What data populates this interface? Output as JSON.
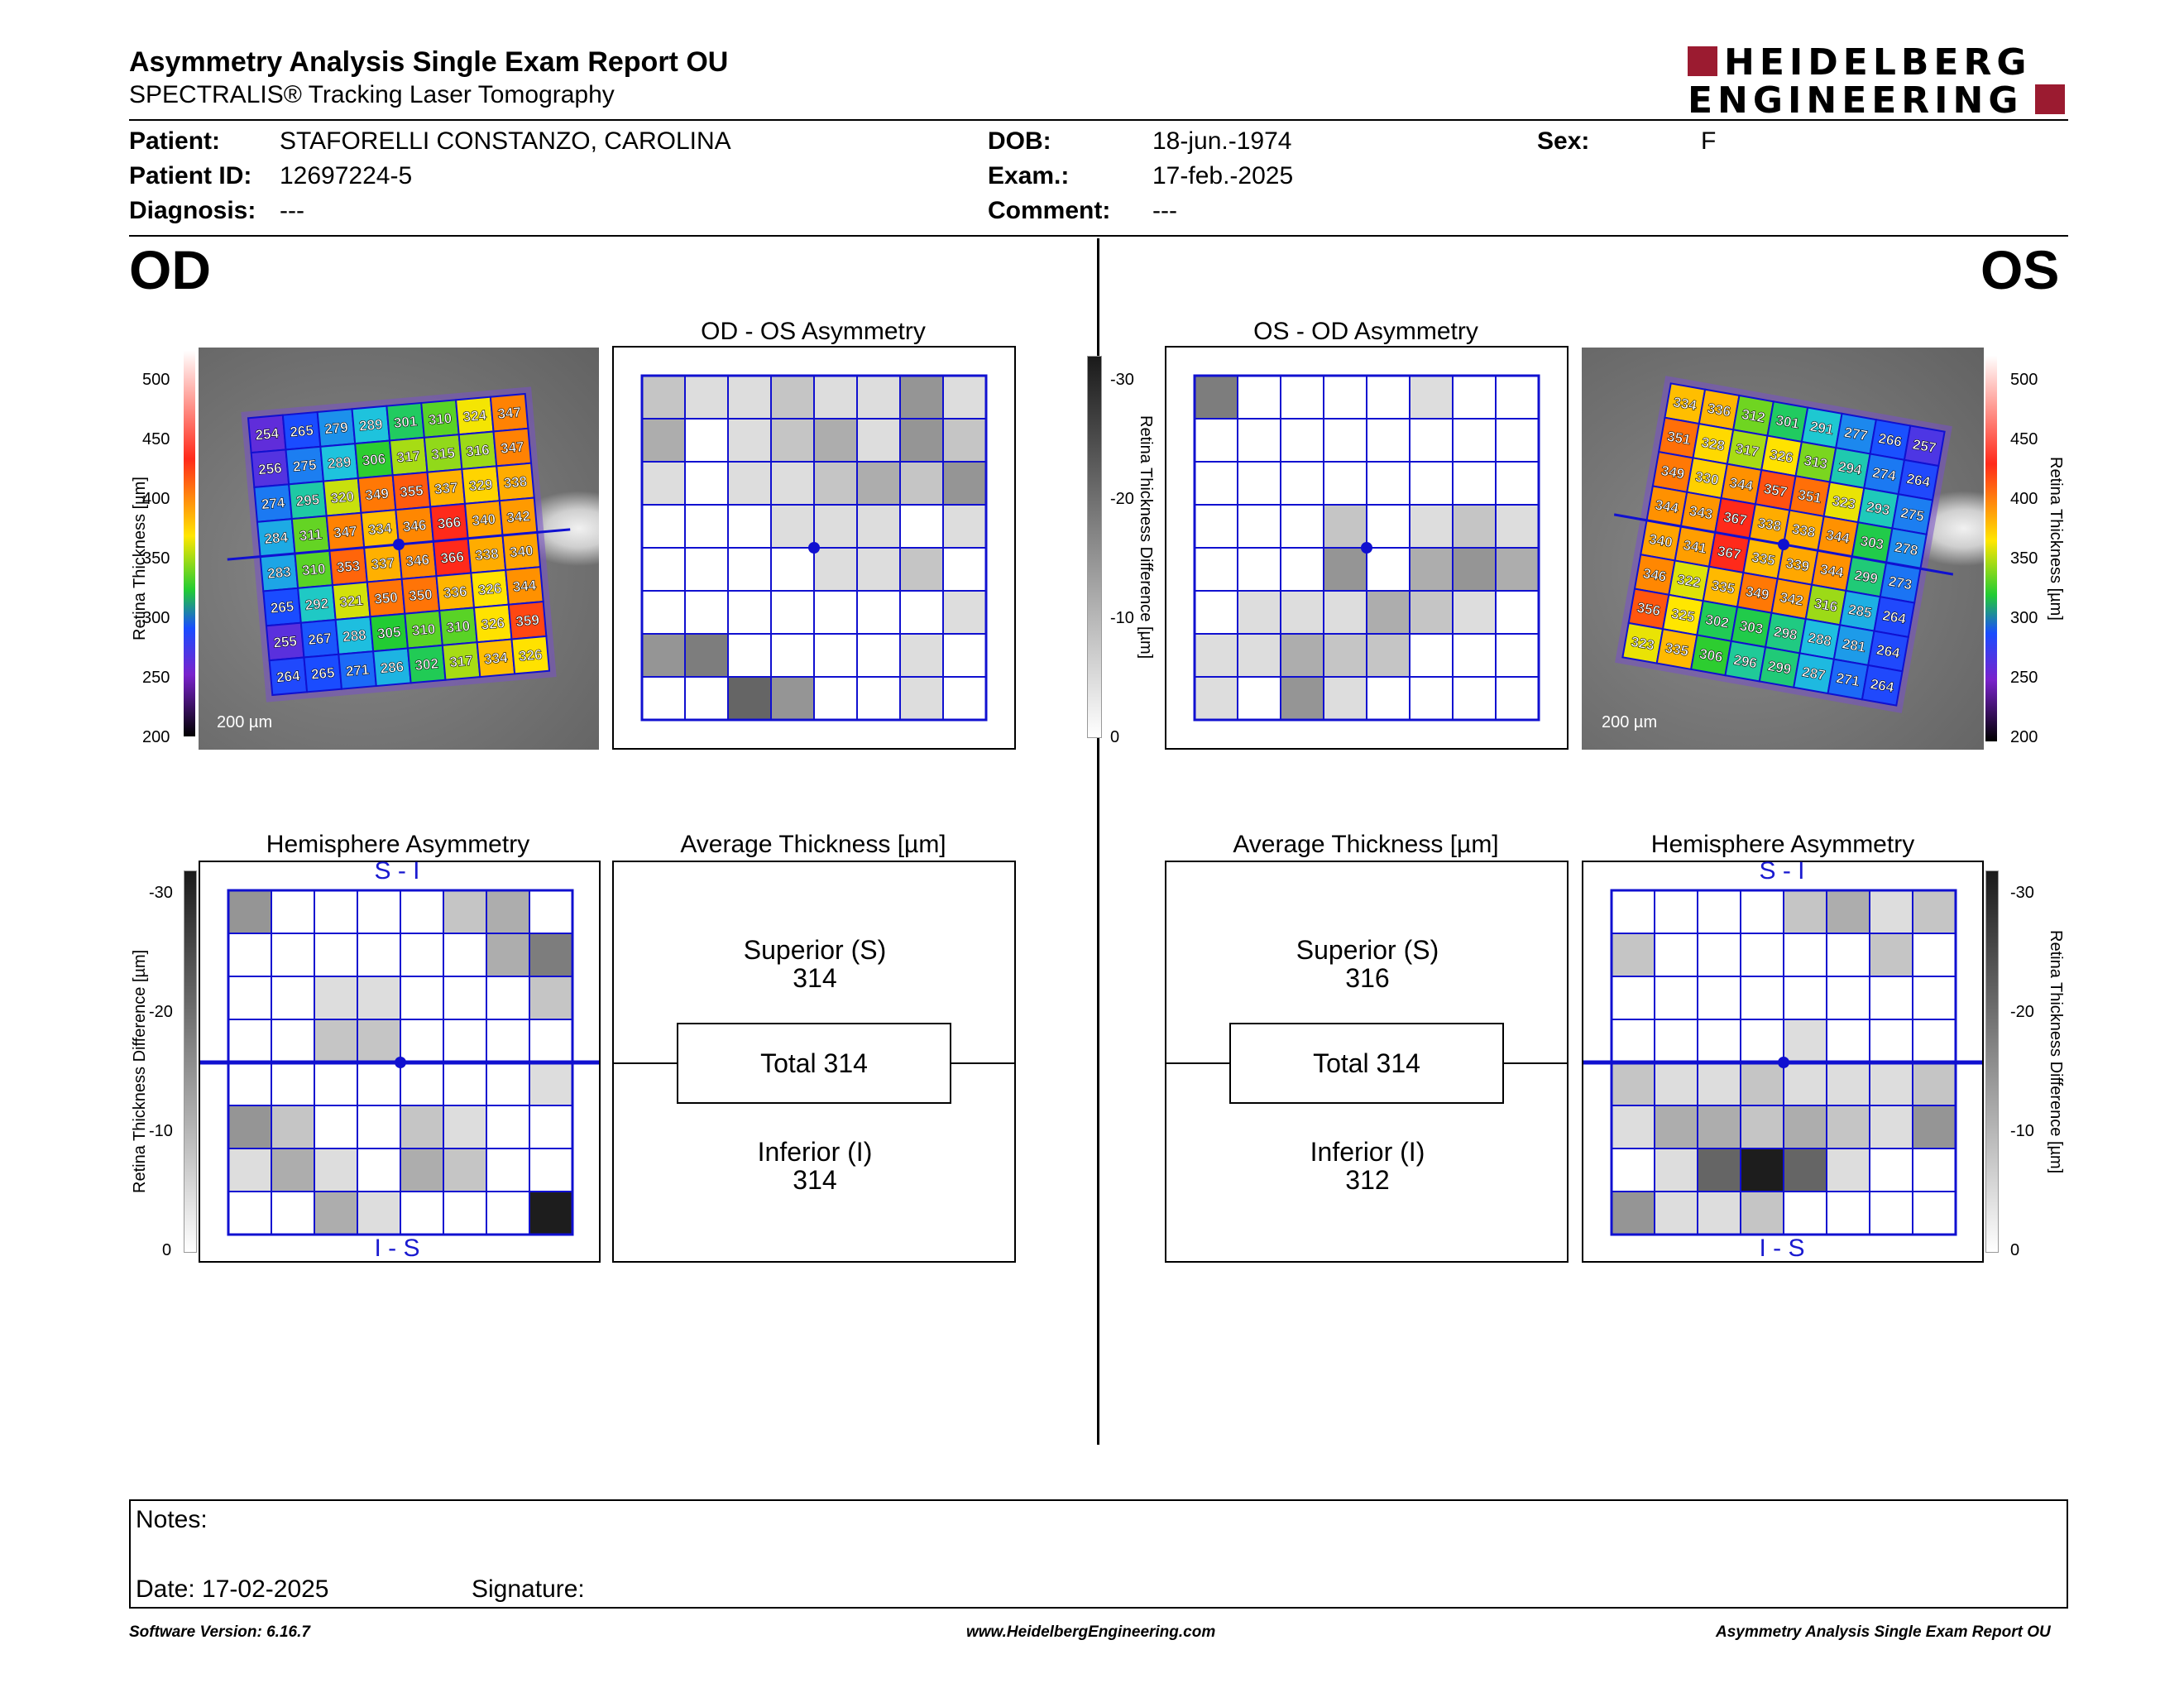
{
  "header": {
    "title": "Asymmetry Analysis Single Exam Report OU",
    "subtitle": "SPECTRALIS® Tracking Laser Tomography",
    "logo_line1": "HEIDELBERG",
    "logo_line2": "ENGINEERING"
  },
  "patient": {
    "patient_label": "Patient:",
    "patient_value": "STAFORELLI CONSTANZO, CAROLINA",
    "id_label": "Patient ID:",
    "id_value": "12697224-5",
    "diagnosis_label": "Diagnosis:",
    "diagnosis_value": "---",
    "dob_label": "DOB:",
    "dob_value": "18-jun.-1974",
    "exam_label": "Exam.:",
    "exam_value": "17-feb.-2025",
    "comment_label": "Comment:",
    "comment_value": "---",
    "sex_label": "Sex:",
    "sex_value": "F"
  },
  "od": {
    "eye_label": "OD",
    "asym_title": "OD - OS Asymmetry",
    "hemi_title": "Hemisphere Asymmetry",
    "avg_title": "Average Thickness [µm]",
    "superior_label": "Superior (S)",
    "superior_value": "314",
    "total_label": "Total 314",
    "inferior_label": "Inferior (I)",
    "inferior_value": "314",
    "hemi_top": "S - I",
    "hemi_bottom": "I - S",
    "scale": "200 µm",
    "thickness": [
      [
        254,
        265,
        279,
        289,
        301,
        310,
        324,
        347
      ],
      [
        256,
        275,
        289,
        306,
        317,
        315,
        316,
        347
      ],
      [
        274,
        295,
        320,
        349,
        355,
        337,
        329,
        338
      ],
      [
        284,
        311,
        347,
        334,
        346,
        366,
        340,
        342
      ],
      [
        283,
        310,
        353,
        337,
        346,
        366,
        338,
        340
      ],
      [
        265,
        292,
        321,
        350,
        350,
        336,
        326,
        344
      ],
      [
        255,
        267,
        288,
        305,
        310,
        310,
        326,
        359
      ],
      [
        264,
        265,
        271,
        286,
        302,
        317,
        334,
        326
      ]
    ],
    "asym_grid": [
      [
        2,
        1,
        1,
        2,
        1,
        1,
        4,
        1
      ],
      [
        3,
        0,
        1,
        2,
        3,
        1,
        4,
        2
      ],
      [
        1,
        0,
        1,
        1,
        2,
        3,
        2,
        4
      ],
      [
        0,
        0,
        0,
        1,
        1,
        1,
        0,
        1
      ],
      [
        0,
        0,
        0,
        0,
        1,
        1,
        2,
        0
      ],
      [
        0,
        0,
        0,
        0,
        0,
        0,
        0,
        1
      ],
      [
        4,
        5,
        0,
        0,
        0,
        0,
        1,
        0
      ],
      [
        0,
        0,
        6,
        4,
        0,
        0,
        1,
        0
      ]
    ],
    "hemi_grid": [
      [
        4,
        0,
        0,
        0,
        0,
        2,
        3,
        0
      ],
      [
        0,
        0,
        0,
        0,
        0,
        0,
        3,
        5
      ],
      [
        0,
        0,
        1,
        1,
        0,
        0,
        0,
        2
      ],
      [
        0,
        0,
        2,
        2,
        0,
        0,
        0,
        0
      ],
      [
        0,
        0,
        0,
        0,
        0,
        0,
        0,
        1
      ],
      [
        4,
        2,
        0,
        0,
        2,
        1,
        0,
        0
      ],
      [
        1,
        3,
        1,
        0,
        3,
        2,
        0,
        0
      ],
      [
        0,
        0,
        3,
        1,
        0,
        0,
        0,
        9
      ]
    ]
  },
  "os": {
    "eye_label": "OS",
    "asym_title": "OS - OD Asymmetry",
    "hemi_title": "Hemisphere Asymmetry",
    "avg_title": "Average Thickness [µm]",
    "superior_label": "Superior (S)",
    "superior_value": "316",
    "total_label": "Total 314",
    "inferior_label": "Inferior (I)",
    "inferior_value": "312",
    "hemi_top": "S - I",
    "hemi_bottom": "I - S",
    "scale": "200 µm",
    "thickness": [
      [
        334,
        336,
        312,
        301,
        291,
        277,
        266,
        257
      ],
      [
        351,
        328,
        317,
        326,
        313,
        294,
        274,
        264
      ],
      [
        349,
        330,
        344,
        357,
        351,
        323,
        293,
        275
      ],
      [
        344,
        343,
        367,
        338,
        338,
        344,
        303,
        278
      ],
      [
        340,
        341,
        367,
        335,
        339,
        344,
        299,
        273
      ],
      [
        346,
        322,
        335,
        349,
        342,
        316,
        285,
        264
      ],
      [
        356,
        325,
        302,
        303,
        298,
        288,
        281,
        264
      ],
      [
        323,
        335,
        306,
        296,
        299,
        287,
        271,
        264
      ]
    ],
    "asym_grid": [
      [
        5,
        0,
        0,
        0,
        0,
        1,
        0,
        0
      ],
      [
        0,
        0,
        0,
        0,
        0,
        0,
        0,
        0
      ],
      [
        0,
        0,
        0,
        0,
        0,
        0,
        0,
        0
      ],
      [
        0,
        0,
        0,
        2,
        0,
        1,
        2,
        1
      ],
      [
        0,
        0,
        0,
        4,
        0,
        3,
        4,
        3
      ],
      [
        0,
        1,
        1,
        1,
        3,
        2,
        1,
        0
      ],
      [
        1,
        1,
        3,
        2,
        2,
        0,
        0,
        0
      ],
      [
        1,
        0,
        4,
        1,
        0,
        0,
        0,
        0
      ]
    ],
    "hemi_grid": [
      [
        0,
        0,
        0,
        0,
        2,
        3,
        1,
        2
      ],
      [
        2,
        0,
        0,
        0,
        0,
        0,
        2,
        0
      ],
      [
        0,
        0,
        0,
        0,
        0,
        0,
        0,
        0
      ],
      [
        0,
        0,
        0,
        0,
        1,
        0,
        0,
        0
      ],
      [
        2,
        1,
        1,
        2,
        1,
        1,
        1,
        2
      ],
      [
        1,
        3,
        3,
        2,
        3,
        2,
        1,
        4
      ],
      [
        0,
        1,
        6,
        9,
        6,
        1,
        0,
        0
      ],
      [
        4,
        1,
        1,
        2,
        0,
        0,
        0,
        0
      ]
    ]
  },
  "colorbars": {
    "thickness_label": "Retina Thickness [µm]",
    "thickness_ticks": [
      "500",
      "450",
      "400",
      "350",
      "300",
      "250",
      "200"
    ],
    "diff_label": "Retina Thickness Difference [µm]",
    "diff_ticks": [
      "-30",
      "-20",
      "-10",
      "0"
    ]
  },
  "colors": {
    "grid_blue": "#1010d0",
    "brand_red": "#9b1b30"
  },
  "notes": {
    "notes_label": "Notes:",
    "date_label": "Date: 17-02-2025",
    "signature_label": "Signature:"
  },
  "footer": {
    "software": "Software Version: 6.16.7",
    "website": "www.HeidelbergEngineering.com",
    "report": "Asymmetry Analysis Single Exam Report OU"
  }
}
